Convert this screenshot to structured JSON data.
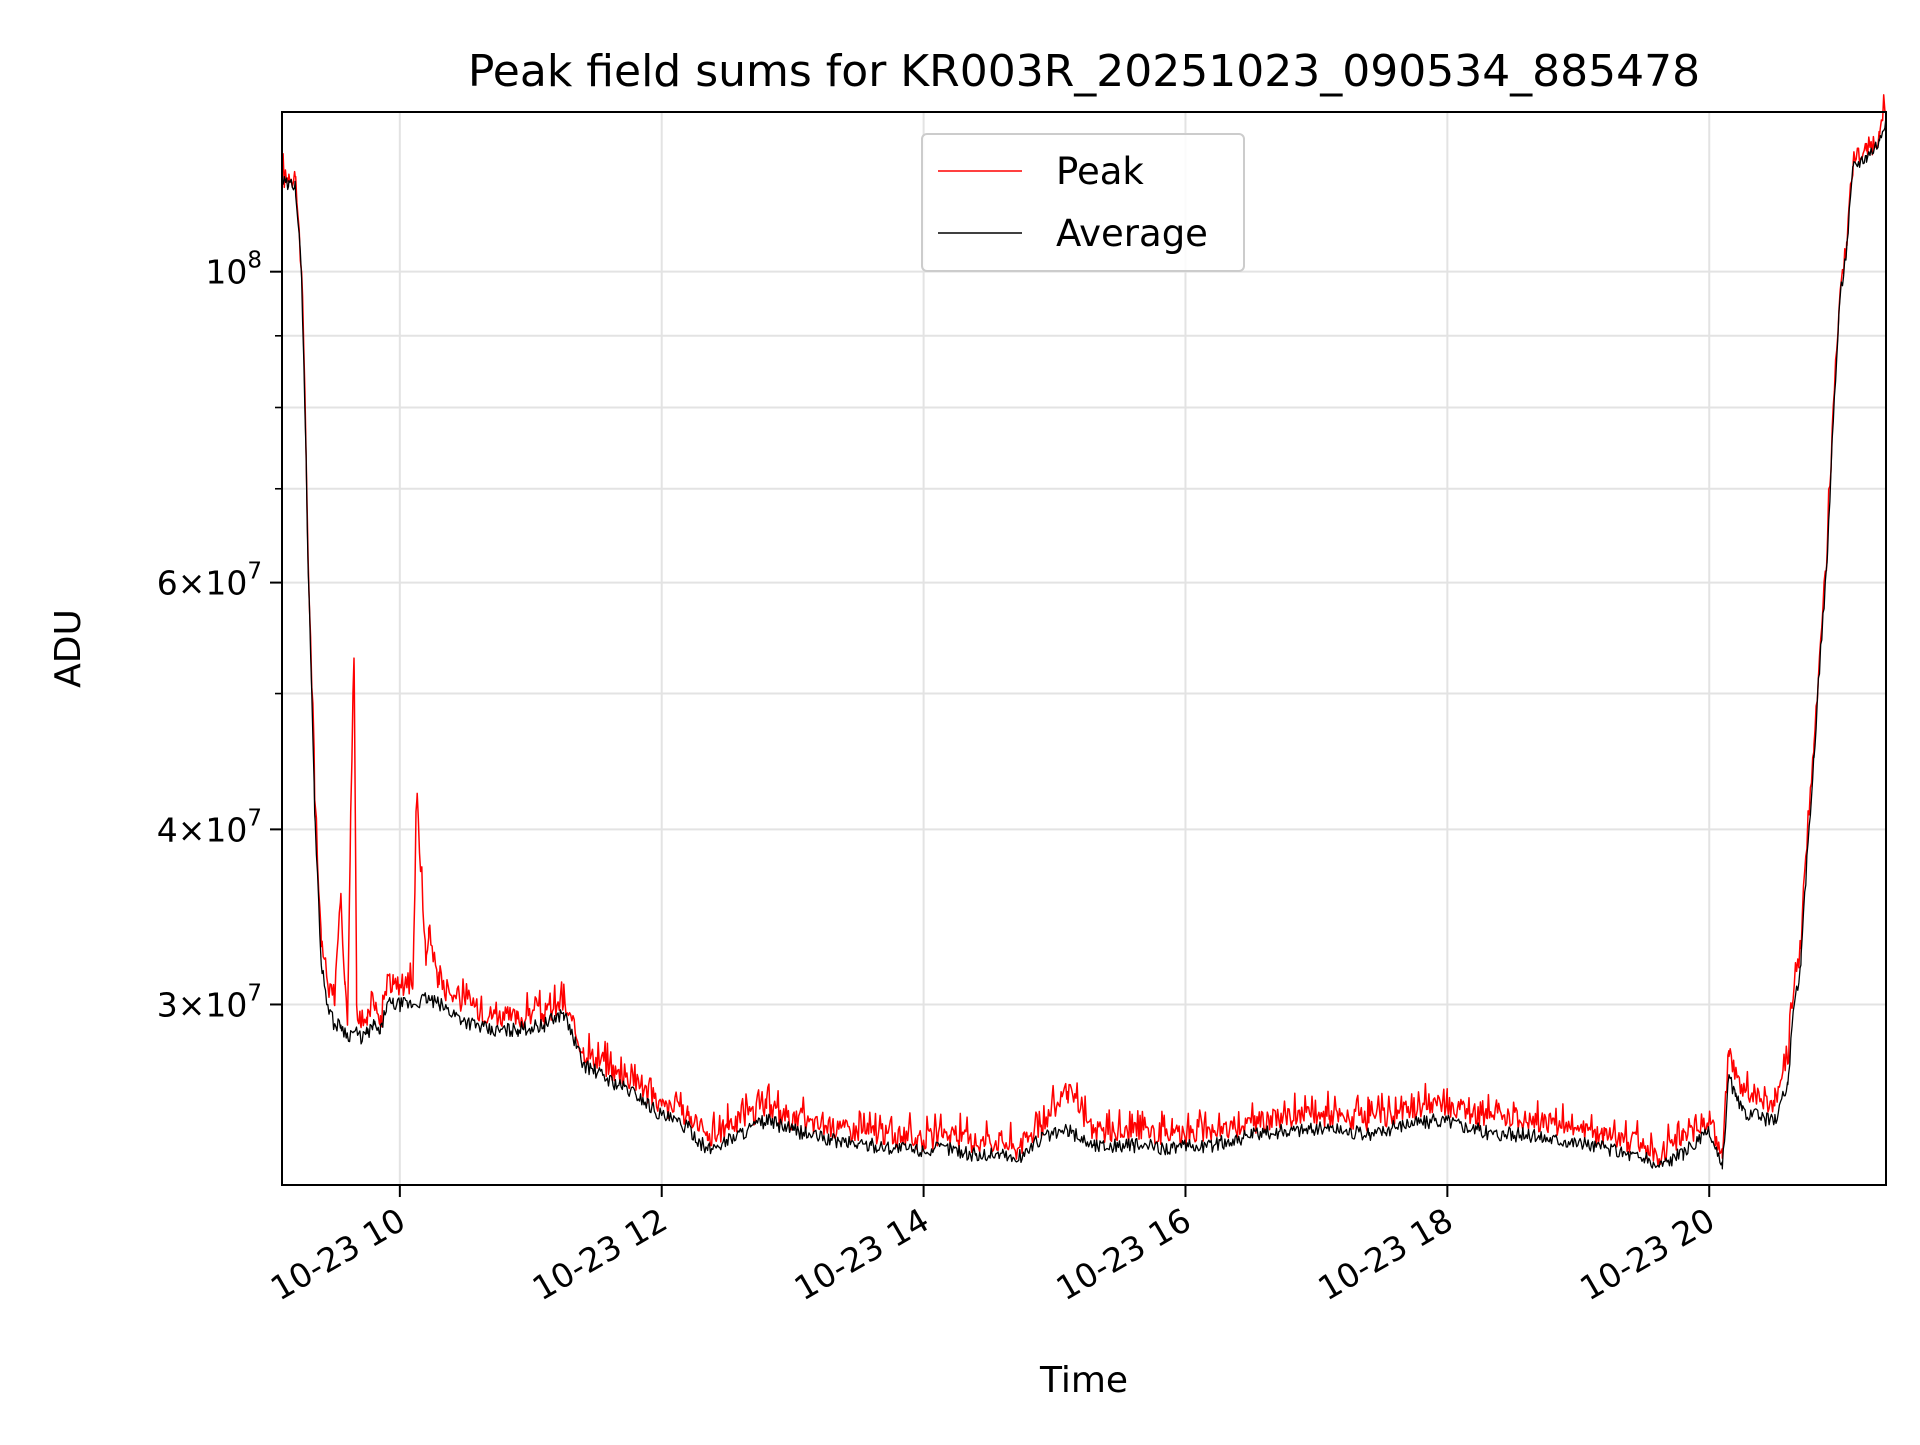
{
  "chart_data": {
    "type": "line",
    "title": "Peak field sums for KR003R_20251023_090534_885478",
    "xlabel": "Time",
    "ylabel": "ADU",
    "x_unit": "hours (2025-10-23)",
    "xlim": [
      9.1,
      21.35
    ],
    "ylim": [
      22.3,
      130.0
    ],
    "y_unit": "millions of ADU (log scale)",
    "yscale": "log",
    "grid": true,
    "legend_position": "top-center",
    "x_ticks": [
      {
        "value": 10,
        "label": "10-23 10"
      },
      {
        "value": 12,
        "label": "10-23 12"
      },
      {
        "value": 14,
        "label": "10-23 14"
      },
      {
        "value": 16,
        "label": "10-23 16"
      },
      {
        "value": 18,
        "label": "10-23 18"
      },
      {
        "value": 20,
        "label": "10-23 20"
      }
    ],
    "y_ticks": [
      {
        "value": 100,
        "base": "10",
        "exp": "8"
      },
      {
        "value": 60,
        "mant": "6",
        "base": "10",
        "exp": "7"
      },
      {
        "value": 40,
        "mant": "4",
        "base": "10",
        "exp": "7"
      },
      {
        "value": 30,
        "mant": "3",
        "base": "10",
        "exp": "7"
      }
    ],
    "y_minor_ticks": [
      50,
      70,
      80,
      90
    ],
    "series": [
      {
        "name": "Peak",
        "color": "#ff0000",
        "x": [
          9.1,
          9.15,
          9.2,
          9.25,
          9.3,
          9.35,
          9.4,
          9.45,
          9.5,
          9.55,
          9.58,
          9.6,
          9.62,
          9.65,
          9.67,
          9.7,
          9.75,
          9.8,
          9.85,
          9.9,
          9.95,
          10.0,
          10.1,
          10.13,
          10.2,
          10.22,
          10.3,
          10.5,
          10.7,
          10.9,
          11.1,
          11.25,
          11.4,
          11.6,
          11.8,
          12.0,
          12.2,
          12.35,
          12.5,
          12.8,
          13.0,
          13.3,
          13.6,
          14.0,
          14.2,
          14.4,
          14.6,
          14.7,
          14.9,
          15.1,
          15.3,
          15.6,
          15.9,
          16.2,
          16.5,
          16.8,
          17.1,
          17.4,
          17.7,
          18.0,
          18.3,
          18.6,
          18.9,
          19.2,
          19.5,
          19.6,
          19.8,
          20.0,
          20.1,
          20.15,
          20.2,
          20.25,
          20.4,
          20.5,
          20.6,
          20.65,
          20.7,
          20.8,
          20.9,
          21.0,
          21.05,
          21.1,
          21.2,
          21.3,
          21.35
        ],
        "values": [
          117,
          116,
          117,
          100,
          62,
          42,
          33,
          31,
          30,
          36,
          31,
          29,
          38,
          53,
          30,
          29,
          29,
          30,
          29,
          31,
          31,
          31,
          31,
          42,
          32,
          34,
          31,
          30,
          29.5,
          29.3,
          29.5,
          30,
          27.8,
          27,
          26.4,
          25.4,
          25,
          24,
          24.5,
          25.3,
          24.8,
          24.5,
          24.3,
          24,
          24.2,
          23.9,
          24,
          23.6,
          24.6,
          26,
          24.3,
          24.3,
          24.2,
          24.3,
          24.7,
          24.9,
          25,
          24.7,
          25.2,
          25.4,
          24.9,
          24.8,
          24.5,
          24.2,
          23.8,
          23.4,
          24,
          24.9,
          23.3,
          27.8,
          26.8,
          26.1,
          25.6,
          25.4,
          27.2,
          31,
          33,
          46,
          63,
          97,
          105,
          120,
          122,
          125,
          130
        ]
      },
      {
        "name": "Average",
        "color": "#000000",
        "x": [
          9.1,
          9.15,
          9.2,
          9.25,
          9.3,
          9.35,
          9.4,
          9.45,
          9.5,
          9.55,
          9.6,
          9.65,
          9.7,
          9.75,
          9.8,
          9.85,
          9.9,
          9.95,
          10.0,
          10.1,
          10.2,
          10.3,
          10.5,
          10.7,
          10.9,
          11.1,
          11.25,
          11.4,
          11.6,
          11.8,
          12.0,
          12.2,
          12.35,
          12.5,
          12.8,
          13.0,
          13.3,
          13.6,
          14.0,
          14.2,
          14.4,
          14.6,
          14.7,
          14.9,
          15.1,
          15.3,
          15.6,
          15.9,
          16.2,
          16.5,
          16.8,
          17.1,
          17.4,
          17.7,
          18.0,
          18.3,
          18.6,
          18.9,
          19.2,
          19.5,
          19.6,
          19.8,
          20.0,
          20.1,
          20.15,
          20.2,
          20.25,
          20.4,
          20.5,
          20.6,
          20.65,
          20.7,
          20.8,
          20.9,
          21.0,
          21.05,
          21.1,
          21.2,
          21.3,
          21.35
        ],
        "values": [
          116,
          115,
          116,
          99,
          61,
          41,
          32,
          30,
          29,
          29,
          28.5,
          28.7,
          28.4,
          28.6,
          29,
          28.6,
          30,
          30,
          30,
          30,
          30.3,
          30,
          29.2,
          28.7,
          28.8,
          29,
          29.6,
          27.2,
          26.5,
          25.9,
          25,
          24.5,
          23.6,
          24,
          24.8,
          24.4,
          24,
          23.8,
          23.6,
          23.7,
          23.4,
          23.5,
          23.2,
          24.1,
          24.4,
          23.8,
          23.8,
          23.7,
          23.8,
          24.2,
          24.4,
          24.5,
          24.2,
          24.7,
          24.8,
          24.3,
          24.2,
          24,
          23.7,
          23.3,
          23,
          23.5,
          24.3,
          22.9,
          26.7,
          25.8,
          25.2,
          24.9,
          24.8,
          26.3,
          30,
          32,
          45,
          62,
          96,
          104,
          119,
          121,
          124,
          129
        ]
      }
    ]
  }
}
